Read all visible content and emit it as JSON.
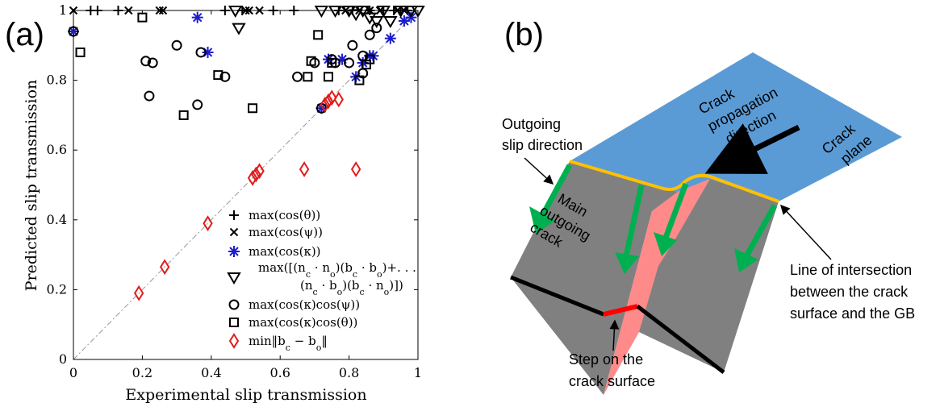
{
  "panel_a_label": "(a)",
  "panel_b_label": "(b)",
  "chart_data": {
    "type": "scatter",
    "xlabel": "Experimental slip transmission",
    "ylabel": "Predicted slip transmission",
    "xlim": [
      0,
      1
    ],
    "ylim": [
      0,
      1
    ],
    "xticks": [
      "0",
      "0.2",
      "0.4",
      "0.6",
      "0.8",
      "1"
    ],
    "yticks": [
      "0",
      "0.2",
      "0.4",
      "0.6",
      "0.8",
      "1"
    ],
    "reference_line": "y = x",
    "legend_position": "bottom-right",
    "series": [
      {
        "name": "max(cos(θ))",
        "marker": "plus",
        "color": "#000000",
        "points": [
          [
            0.0,
            0.94
          ],
          [
            0.05,
            1.0
          ],
          [
            0.07,
            1.0
          ],
          [
            0.13,
            1.0
          ],
          [
            0.44,
            1.0
          ],
          [
            0.49,
            1.0
          ],
          [
            0.58,
            1.0
          ],
          [
            0.64,
            1.0
          ],
          [
            0.77,
            1.0
          ],
          [
            0.81,
            1.0
          ],
          [
            0.86,
            1.0
          ],
          [
            0.9,
            1.0
          ],
          [
            0.93,
            1.0
          ],
          [
            0.95,
            1.0
          ],
          [
            0.97,
            1.0
          ]
        ]
      },
      {
        "name": "max(cos(ψ))",
        "marker": "cross",
        "color": "#000000",
        "points": [
          [
            0.0,
            1.0
          ],
          [
            0.16,
            1.0
          ],
          [
            0.25,
            1.0
          ],
          [
            0.26,
            1.0
          ],
          [
            0.5,
            1.0
          ],
          [
            0.51,
            1.0
          ],
          [
            0.54,
            1.0
          ],
          [
            0.79,
            1.0
          ],
          [
            0.83,
            1.0
          ],
          [
            0.86,
            1.0
          ],
          [
            0.89,
            1.0
          ],
          [
            0.94,
            1.0
          ],
          [
            0.96,
            1.0
          ]
        ]
      },
      {
        "name": "max(cos(κ))",
        "marker": "asterisk",
        "color": "#1c1ccc",
        "points": [
          [
            0.0,
            0.94
          ],
          [
            0.36,
            0.98
          ],
          [
            0.39,
            0.88
          ],
          [
            0.72,
            0.72
          ],
          [
            0.74,
            0.86
          ],
          [
            0.78,
            0.86
          ],
          [
            0.82,
            0.81
          ],
          [
            0.84,
            0.85
          ],
          [
            0.86,
            0.87
          ],
          [
            0.87,
            0.87
          ],
          [
            0.92,
            0.92
          ],
          [
            0.96,
            0.97
          ],
          [
            0.98,
            0.98
          ]
        ]
      },
      {
        "name": "max([(n_c·n_o)(b_c·b_o)+...(n_c·b_o)(b_c·n_o)])",
        "marker": "triangle-down",
        "color": "#000000",
        "points": [
          [
            0.47,
            1.0
          ],
          [
            0.48,
            0.95
          ],
          [
            0.72,
            1.0
          ],
          [
            0.76,
            1.0
          ],
          [
            0.8,
            1.0
          ],
          [
            0.82,
            0.99
          ],
          [
            0.84,
            1.0
          ],
          [
            0.86,
            0.98
          ],
          [
            0.88,
            0.97
          ],
          [
            0.9,
            1.0
          ],
          [
            0.92,
            0.97
          ],
          [
            0.95,
            1.0
          ],
          [
            0.98,
            1.0
          ],
          [
            1.0,
            1.0
          ]
        ]
      },
      {
        "name": "max(cos(κ)cos(ψ))",
        "marker": "circle",
        "color": "#000000",
        "points": [
          [
            0.0,
            0.94
          ],
          [
            0.21,
            0.855
          ],
          [
            0.23,
            0.85
          ],
          [
            0.22,
            0.755
          ],
          [
            0.3,
            0.9
          ],
          [
            0.37,
            0.88
          ],
          [
            0.36,
            0.73
          ],
          [
            0.44,
            0.81
          ],
          [
            0.65,
            0.81
          ],
          [
            0.7,
            0.85
          ],
          [
            0.75,
            0.86
          ],
          [
            0.76,
            0.85
          ],
          [
            0.8,
            0.85
          ],
          [
            0.81,
            0.9
          ],
          [
            0.84,
            0.87
          ],
          [
            0.86,
            0.93
          ],
          [
            0.88,
            0.95
          ],
          [
            0.72,
            0.72
          ],
          [
            0.84,
            0.82
          ]
        ]
      },
      {
        "name": "max(cos(κ)cos(θ))",
        "marker": "square",
        "color": "#000000",
        "points": [
          [
            0.02,
            0.88
          ],
          [
            0.2,
            0.98
          ],
          [
            0.32,
            0.7
          ],
          [
            0.42,
            0.815
          ],
          [
            0.52,
            0.72
          ],
          [
            0.71,
            0.93
          ],
          [
            0.69,
            0.855
          ],
          [
            0.68,
            0.81
          ],
          [
            0.74,
            0.81
          ],
          [
            0.75,
            0.85
          ],
          [
            0.83,
            0.8
          ],
          [
            0.85,
            0.845
          ],
          [
            0.86,
            0.86
          ]
        ]
      },
      {
        "name": "min‖b_c − b_o‖",
        "marker": "diamond",
        "color": "#e11b1b",
        "points": [
          [
            0.19,
            0.19
          ],
          [
            0.265,
            0.265
          ],
          [
            0.39,
            0.39
          ],
          [
            0.52,
            0.52
          ],
          [
            0.53,
            0.53
          ],
          [
            0.54,
            0.54
          ],
          [
            0.67,
            0.545
          ],
          [
            0.82,
            0.545
          ],
          [
            0.74,
            0.74
          ],
          [
            0.75,
            0.75
          ],
          [
            0.77,
            0.745
          ],
          [
            0.73,
            0.73
          ]
        ]
      }
    ]
  },
  "legend": {
    "plus": "max(cos(θ))",
    "cross": "max(cos(ψ))",
    "asterisk": "max(cos(κ))",
    "tri_line1": "max([(n",
    "tri_line2": "(n",
    "circle": "max(cos(κ)cos(ψ))",
    "square": "max(cos(κ)cos(θ))",
    "diamond": "min‖b"
  },
  "diagram": {
    "labels": {
      "crack_propagation": [
        "Crack",
        "propagation",
        "direction"
      ],
      "crack_plane": [
        "Crack",
        "plane"
      ],
      "outgoing_slip": [
        "Outgoing",
        "slip direction"
      ],
      "main_outgoing_crack": [
        "Main",
        "outgoing",
        "crack"
      ],
      "line_of_intersection": [
        "Line of intersection",
        "between the crack",
        "surface and the GB"
      ],
      "step": [
        "Step on the",
        "crack surface"
      ]
    },
    "colors": {
      "crack_plane": "#5b9bd5",
      "grain_boundary": "#7f7f7f",
      "step": "#ff8585",
      "step_edge": "#ff0000",
      "intersection_line": "#ffc000",
      "slip_arrows": "#00b050",
      "bottom_edge": "#000000"
    }
  }
}
